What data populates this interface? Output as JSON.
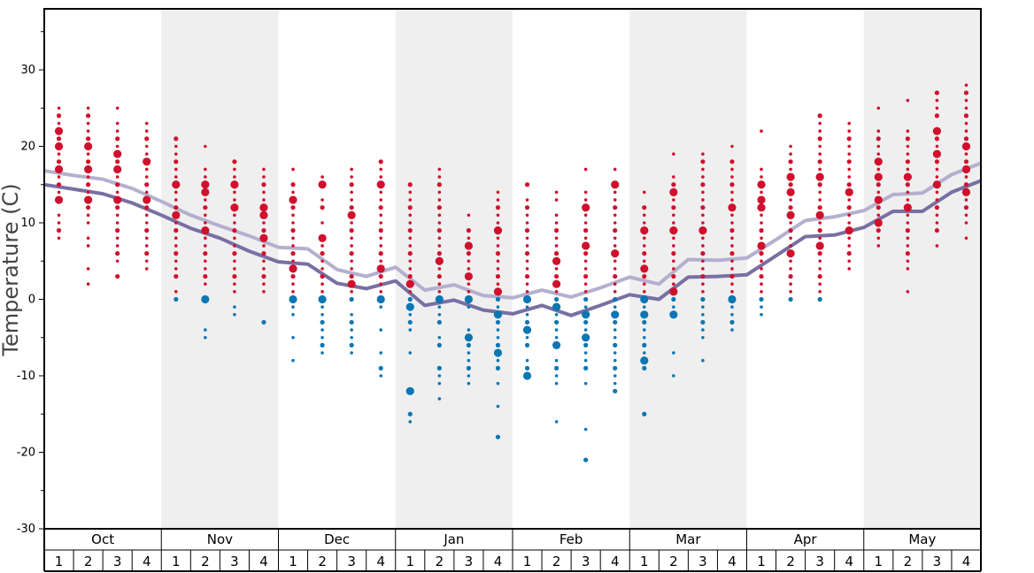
{
  "chart_data": {
    "type": "scatter",
    "title": "",
    "xlabel": "",
    "ylabel": "Temperature (C)",
    "ylim": [
      -30,
      37
    ],
    "yticks": [
      -30,
      -20,
      -10,
      0,
      10,
      20,
      30
    ],
    "months": [
      "Oct",
      "Nov",
      "Dec",
      "Jan",
      "Feb",
      "Mar",
      "Apr",
      "May"
    ],
    "weeks": [
      "1",
      "2",
      "3",
      "4"
    ],
    "colors": {
      "warm_dot": "#d0102c",
      "cold_dot": "#0b76b3",
      "avg_high_line": "#b3b0cf",
      "avg_low_line": "#7a6fa3",
      "band": "#efefef"
    },
    "series": [
      {
        "name": "",
        "style": "line",
        "color": "#b3b0cf",
        "values": [
          16.8,
          16.2,
          15.7,
          14.5,
          12.8,
          11.0,
          9.6,
          8.3,
          6.8,
          6.6,
          3.9,
          3.0,
          4.2,
          1.2,
          1.9,
          0.5,
          0.2,
          1.2,
          0.3,
          1.5,
          2.9,
          2.0,
          5.2,
          5.1,
          5.4,
          7.8,
          10.3,
          10.8,
          11.6,
          13.7,
          13.9,
          16.3,
          17.8
        ]
      },
      {
        "name": "",
        "style": "line",
        "color": "#7a6fa3",
        "values": [
          15.0,
          14.4,
          13.8,
          12.6,
          11.0,
          9.3,
          8.0,
          6.3,
          4.9,
          4.6,
          2.1,
          1.4,
          2.4,
          -0.8,
          -0.1,
          -1.4,
          -1.9,
          -0.8,
          -2.1,
          -0.8,
          0.6,
          0.0,
          2.9,
          3.0,
          3.2,
          5.7,
          8.2,
          8.4,
          9.4,
          11.5,
          11.5,
          14.0,
          15.5
        ]
      }
    ],
    "observations": [
      {
        "week": "Oct-1",
        "temps": [
          25,
          24,
          23,
          22,
          21,
          20,
          19,
          18,
          17,
          16,
          15,
          14,
          13,
          11,
          10,
          9,
          8
        ],
        "highlight": [
          22,
          20,
          17,
          13
        ]
      },
      {
        "week": "Oct-2",
        "temps": [
          25,
          24,
          23,
          22,
          21,
          20,
          19,
          18,
          17,
          16,
          15,
          14,
          13,
          12,
          11,
          10,
          8,
          7,
          4,
          2
        ],
        "highlight": [
          20,
          17,
          13
        ]
      },
      {
        "week": "Oct-3",
        "temps": [
          25,
          23,
          22,
          21,
          20,
          19,
          18,
          17,
          16,
          15,
          14,
          13,
          12,
          11,
          10,
          9,
          8,
          7,
          6,
          5,
          3
        ],
        "highlight": [
          19,
          17,
          13
        ]
      },
      {
        "week": "Oct-4",
        "temps": [
          23,
          22,
          21,
          20,
          19,
          18,
          17,
          16,
          15,
          14,
          13,
          12,
          11,
          10,
          9,
          8,
          7,
          6,
          5,
          4
        ],
        "highlight": [
          18,
          13
        ]
      },
      {
        "week": "Nov-1",
        "temps": [
          21,
          20,
          19,
          18,
          17,
          16,
          15,
          14,
          13,
          12,
          11,
          10,
          9,
          8,
          7,
          6,
          5,
          4,
          3,
          1,
          0
        ],
        "highlight": [
          15,
          11
        ]
      },
      {
        "week": "Nov-2",
        "temps": [
          20,
          17,
          16,
          15,
          14,
          13,
          12,
          11,
          10,
          9,
          8,
          7,
          6,
          5,
          4,
          3,
          2,
          0,
          -4,
          -5
        ],
        "highlight": [
          15,
          14,
          9,
          0
        ]
      },
      {
        "week": "Nov-3",
        "temps": [
          18,
          17,
          16,
          15,
          14,
          13,
          12,
          11,
          10,
          9,
          8,
          7,
          6,
          5,
          4,
          3,
          2,
          1,
          -1,
          -2
        ],
        "highlight": [
          15,
          12
        ]
      },
      {
        "week": "Nov-4",
        "temps": [
          17,
          16,
          15,
          14,
          13,
          12,
          11,
          10,
          9,
          8,
          7,
          6,
          5,
          4,
          3,
          2,
          1,
          -3
        ],
        "highlight": [
          12,
          11,
          8
        ]
      },
      {
        "week": "Dec-1",
        "temps": [
          17,
          15,
          14,
          13,
          12,
          11,
          10,
          9,
          8,
          7,
          6,
          5,
          4,
          3,
          2,
          1,
          0,
          -1,
          -2,
          -5,
          -8
        ],
        "highlight": [
          13,
          4,
          0
        ]
      },
      {
        "week": "Dec-2",
        "temps": [
          16,
          15,
          13,
          12,
          10,
          8,
          7,
          6,
          5,
          4,
          3,
          2,
          1,
          0,
          -1,
          -2,
          -3,
          -4,
          -5,
          -6,
          -7
        ],
        "highlight": [
          15,
          8,
          0
        ]
      },
      {
        "week": "Dec-3",
        "temps": [
          17,
          16,
          15,
          14,
          13,
          12,
          11,
          10,
          9,
          8,
          7,
          6,
          5,
          4,
          3,
          2,
          1,
          0,
          -2,
          -3,
          -4,
          -5,
          -6,
          -7
        ],
        "highlight": [
          11,
          2
        ]
      },
      {
        "week": "Dec-4",
        "temps": [
          18,
          17,
          16,
          15,
          14,
          13,
          12,
          11,
          10,
          9,
          8,
          7,
          6,
          5,
          4,
          3,
          2,
          1,
          0,
          -1,
          -4,
          -7,
          -9,
          -10
        ],
        "highlight": [
          15,
          4,
          0
        ]
      },
      {
        "week": "Jan-1",
        "temps": [
          15,
          14,
          13,
          12,
          11,
          10,
          9,
          8,
          7,
          6,
          5,
          4,
          3,
          2,
          1,
          0,
          -1,
          -2,
          -3,
          -4,
          -7,
          -12,
          -15,
          -16
        ],
        "highlight": [
          2,
          -1,
          -12
        ]
      },
      {
        "week": "Jan-2",
        "temps": [
          17,
          16,
          15,
          14,
          13,
          12,
          11,
          10,
          9,
          8,
          7,
          6,
          5,
          4,
          3,
          2,
          1,
          0,
          -1,
          -2,
          -3,
          -5,
          -6,
          -9,
          -10,
          -11,
          -13
        ],
        "highlight": [
          5,
          0
        ]
      },
      {
        "week": "Jan-3",
        "temps": [
          11,
          9,
          8,
          7,
          6,
          5,
          4,
          3,
          2,
          1,
          0,
          -1,
          -4,
          -5,
          -6,
          -7,
          -8,
          -9,
          -10,
          -11
        ],
        "highlight": [
          7,
          3,
          0,
          -5
        ]
      },
      {
        "week": "Jan-4",
        "temps": [
          14,
          13,
          12,
          11,
          10,
          9,
          8,
          7,
          6,
          5,
          4,
          3,
          2,
          1,
          0,
          -1,
          -2,
          -3,
          -4,
          -5,
          -6,
          -7,
          -8,
          -9,
          -11,
          -14,
          -18
        ],
        "highlight": [
          9,
          1,
          -2,
          -7
        ]
      },
      {
        "week": "Feb-1",
        "temps": [
          15,
          13,
          12,
          11,
          10,
          9,
          8,
          7,
          6,
          5,
          4,
          3,
          2,
          1,
          0,
          -1,
          -2,
          -3,
          -4,
          -5,
          -6,
          -8,
          -9,
          -10
        ],
        "highlight": [
          0,
          -4,
          -10
        ]
      },
      {
        "week": "Feb-2",
        "temps": [
          14,
          13,
          11,
          10,
          9,
          8,
          7,
          6,
          5,
          4,
          3,
          2,
          1,
          0,
          -1,
          -2,
          -3,
          -4,
          -5,
          -6,
          -8,
          -9,
          -10,
          -11,
          -16
        ],
        "highlight": [
          5,
          2,
          -1,
          -6
        ]
      },
      {
        "week": "Feb-3",
        "temps": [
          17,
          14,
          13,
          12,
          11,
          10,
          9,
          8,
          7,
          6,
          5,
          4,
          3,
          2,
          1,
          0,
          -1,
          -2,
          -3,
          -4,
          -5,
          -6,
          -7,
          -8,
          -9,
          -11,
          -17,
          -21
        ],
        "highlight": [
          12,
          7,
          -2,
          -5
        ]
      },
      {
        "week": "Feb-4",
        "temps": [
          17,
          15,
          14,
          13,
          12,
          11,
          10,
          9,
          8,
          7,
          6,
          5,
          4,
          3,
          2,
          1,
          0,
          -1,
          -2,
          -3,
          -4,
          -5,
          -6,
          -7,
          -8,
          -9,
          -10,
          -11,
          -12
        ],
        "highlight": [
          15,
          6,
          -2
        ]
      },
      {
        "week": "Mar-1",
        "temps": [
          14,
          12,
          11,
          10,
          9,
          8,
          7,
          6,
          5,
          4,
          3,
          2,
          1,
          0,
          -1,
          -2,
          -3,
          -4,
          -5,
          -6,
          -7,
          -8,
          -9,
          -15
        ],
        "highlight": [
          9,
          4,
          0,
          -2,
          -8
        ]
      },
      {
        "week": "Mar-2",
        "temps": [
          19,
          16,
          15,
          14,
          13,
          12,
          11,
          10,
          9,
          8,
          7,
          6,
          5,
          4,
          3,
          2,
          1,
          0,
          -1,
          -2,
          -7,
          -10
        ],
        "highlight": [
          14,
          9,
          1,
          -2
        ]
      },
      {
        "week": "Mar-3",
        "temps": [
          19,
          18,
          17,
          16,
          15,
          14,
          13,
          12,
          11,
          10,
          9,
          8,
          7,
          6,
          5,
          4,
          3,
          2,
          1,
          0,
          -1,
          -2,
          -3,
          -4,
          -5,
          -8
        ],
        "highlight": [
          9
        ]
      },
      {
        "week": "Mar-4",
        "temps": [
          20,
          18,
          17,
          16,
          15,
          14,
          13,
          12,
          11,
          10,
          9,
          8,
          7,
          6,
          5,
          4,
          3,
          2,
          1,
          0,
          -1,
          -2,
          -3,
          -4
        ],
        "highlight": [
          12,
          0
        ]
      },
      {
        "week": "Apr-1",
        "temps": [
          22,
          17,
          16,
          15,
          14,
          13,
          12,
          11,
          10,
          9,
          8,
          7,
          6,
          5,
          4,
          3,
          2,
          1,
          0,
          -1,
          -2
        ],
        "highlight": [
          15,
          13,
          12,
          7
        ]
      },
      {
        "week": "Apr-2",
        "temps": [
          20,
          19,
          18,
          17,
          16,
          15,
          14,
          13,
          12,
          11,
          10,
          9,
          8,
          7,
          6,
          5,
          4,
          3,
          2,
          1,
          0
        ],
        "highlight": [
          16,
          14,
          11,
          6
        ]
      },
      {
        "week": "Apr-3",
        "temps": [
          24,
          23,
          22,
          21,
          20,
          19,
          18,
          17,
          16,
          15,
          14,
          13,
          12,
          11,
          10,
          9,
          8,
          7,
          6,
          5,
          4,
          3,
          2,
          1,
          0
        ],
        "highlight": [
          16,
          11,
          7
        ]
      },
      {
        "week": "Apr-4",
        "temps": [
          23,
          22,
          21,
          20,
          19,
          18,
          17,
          16,
          15,
          14,
          13,
          12,
          11,
          10,
          9,
          8,
          7,
          6,
          5,
          4
        ],
        "highlight": [
          14,
          9
        ]
      },
      {
        "week": "May-1",
        "temps": [
          25,
          22,
          21,
          20,
          19,
          18,
          17,
          16,
          15,
          14,
          13,
          12,
          11,
          10,
          9,
          8,
          7
        ],
        "highlight": [
          18,
          16,
          13,
          10
        ]
      },
      {
        "week": "May-2",
        "temps": [
          26,
          22,
          21,
          20,
          19,
          18,
          17,
          16,
          15,
          14,
          13,
          12,
          11,
          10,
          9,
          8,
          7,
          6,
          5,
          4,
          1
        ],
        "highlight": [
          16,
          12
        ]
      },
      {
        "week": "May-3",
        "temps": [
          27,
          26,
          25,
          24,
          22,
          21,
          20,
          19,
          18,
          17,
          16,
          15,
          14,
          13,
          12,
          11,
          10,
          9,
          7
        ],
        "highlight": [
          22,
          19,
          15
        ]
      },
      {
        "week": "May-4",
        "temps": [
          28,
          27,
          26,
          25,
          24,
          23,
          22,
          21,
          20,
          19,
          18,
          17,
          16,
          15,
          14,
          13,
          12,
          11,
          10,
          8
        ],
        "highlight": [
          20,
          17,
          14
        ]
      }
    ]
  }
}
